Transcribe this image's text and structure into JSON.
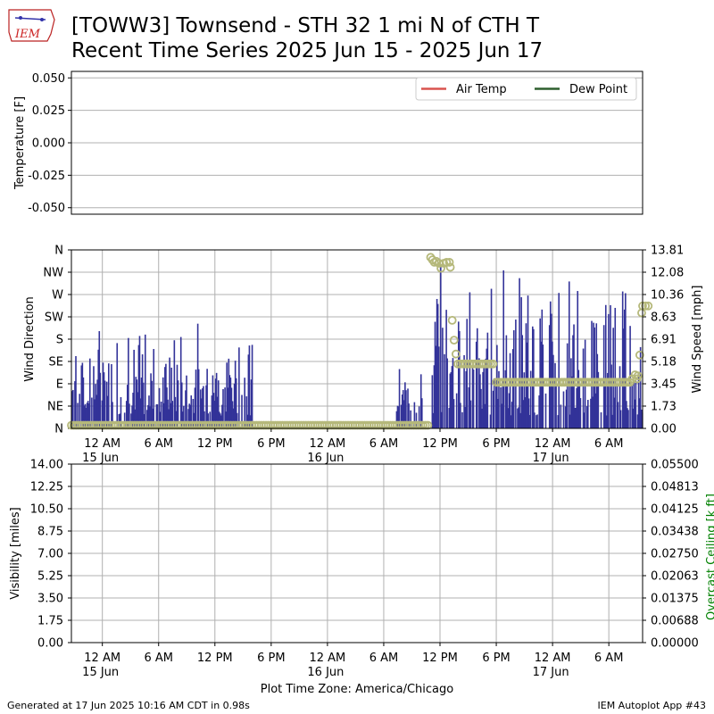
{
  "header": {
    "logo_text": "IEM",
    "title_line1": "[TOWW3] Townsend - STH 32 1 mi N of CTH T",
    "title_line2": "Recent Time Series 2025 Jun 15 - 2025 Jun 17"
  },
  "footer": {
    "generated": "Generated at 17 Jun 2025 10:16 AM CDT in 0.98s",
    "app": "IEM Autoplot App #43",
    "xlabel": "Plot Time Zone: America/Chicago"
  },
  "time_ticks": [
    {
      "hour": 0,
      "label": "12 AM",
      "date": "15 Jun"
    },
    {
      "hour": 6,
      "label": "6 AM",
      "date": ""
    },
    {
      "hour": 12,
      "label": "12 PM",
      "date": ""
    },
    {
      "hour": 18,
      "label": "6 PM",
      "date": ""
    },
    {
      "hour": 24,
      "label": "12 AM",
      "date": "16 Jun"
    },
    {
      "hour": 30,
      "label": "6 AM",
      "date": ""
    },
    {
      "hour": 36,
      "label": "12 PM",
      "date": ""
    },
    {
      "hour": 42,
      "label": "6 PM",
      "date": ""
    },
    {
      "hour": 48,
      "label": "12 AM",
      "date": "17 Jun"
    },
    {
      "hour": 54,
      "label": "6 AM",
      "date": ""
    }
  ],
  "chart_data": [
    {
      "type": "line",
      "ylabel": "Temperature [F]",
      "xlim_hours": [
        -3.3,
        57.6
      ],
      "ylim": [
        -0.055,
        0.055
      ],
      "yticks": [
        "0.050",
        "0.025",
        "0.000",
        "-0.025",
        "-0.050"
      ],
      "ytick_values": [
        0.05,
        0.025,
        0.0,
        -0.025,
        -0.05
      ],
      "grid": true,
      "legend_position": "top-right",
      "series": [
        {
          "name": "Air Temp",
          "color": "#d9534f",
          "values": []
        },
        {
          "name": "Dew Point",
          "color": "#2e5f2e",
          "values": []
        }
      ]
    },
    {
      "type": "bar",
      "ylabel": "Wind Direction",
      "ylabel_right": "Wind Speed [mph]",
      "xlim_hours": [
        -3.3,
        57.6
      ],
      "direction_ticks": [
        "N",
        "NE",
        "E",
        "SE",
        "S",
        "SW",
        "W",
        "NW",
        "N"
      ],
      "direction_range": [
        0,
        360
      ],
      "speed_ticks": [
        "0.00",
        "1.73",
        "3.45",
        "5.18",
        "6.91",
        "8.63",
        "10.36",
        "12.08",
        "13.81"
      ],
      "speed_range": [
        0,
        13.81
      ],
      "bar_color": "#333399",
      "marker_color": "#b5b87a",
      "grid": true,
      "wind_speed": {
        "segments": [
          {
            "start": -3.3,
            "end": 15.9,
            "min": 1.0,
            "max": 8.8
          },
          {
            "start": 31.3,
            "end": 34.2,
            "min": 1.0,
            "max": 5.1
          },
          {
            "start": 35.1,
            "end": 57.6,
            "min": 1.0,
            "max": 13.1
          }
        ]
      },
      "wind_direction": [
        {
          "start": -3.3,
          "end": 34.8,
          "value": 0
        },
        {
          "t": 35.0,
          "v": 345
        },
        {
          "t": 35.2,
          "v": 340
        },
        {
          "t": 35.4,
          "v": 335
        },
        {
          "t": 35.6,
          "v": 337
        },
        {
          "t": 35.9,
          "v": 333
        },
        {
          "t": 36.1,
          "v": 323
        },
        {
          "t": 36.4,
          "v": 333
        },
        {
          "t": 36.7,
          "v": 335
        },
        {
          "t": 37.0,
          "v": 335
        },
        {
          "t": 37.1,
          "v": 325
        },
        {
          "t": 37.3,
          "v": 218
        },
        {
          "t": 37.5,
          "v": 178
        },
        {
          "t": 37.7,
          "v": 150
        },
        {
          "start": 37.9,
          "end": 41.8,
          "value": 130
        },
        {
          "start": 42.0,
          "end": 56.4,
          "value": 93
        },
        {
          "t": 56.5,
          "v": 100
        },
        {
          "t": 56.8,
          "v": 108
        },
        {
          "t": 57.0,
          "v": 100
        },
        {
          "t": 57.1,
          "v": 106
        },
        {
          "t": 57.3,
          "v": 148
        },
        {
          "t": 57.5,
          "v": 233
        },
        {
          "t": 57.6,
          "v": 247
        },
        {
          "t": 57.9,
          "v": 247
        },
        {
          "t": 58.2,
          "v": 247
        }
      ]
    },
    {
      "type": "line",
      "ylabel": "Visibility [miles]",
      "ylabel_right": "Overcast Ceiling [k ft]",
      "ylabel_right_color": "#008000",
      "xlim_hours": [
        -3.3,
        57.6
      ],
      "ylim": [
        0,
        14
      ],
      "yticks": [
        "0.00",
        "1.75",
        "3.50",
        "5.25",
        "7.00",
        "8.75",
        "10.50",
        "12.25",
        "14.00"
      ],
      "ylim_right": [
        0,
        0.055
      ],
      "yticks_right": [
        "0.00000",
        "0.00688",
        "0.01375",
        "0.02063",
        "0.02750",
        "0.03438",
        "0.04125",
        "0.04813",
        "0.05500"
      ],
      "grid": true,
      "series": []
    }
  ]
}
